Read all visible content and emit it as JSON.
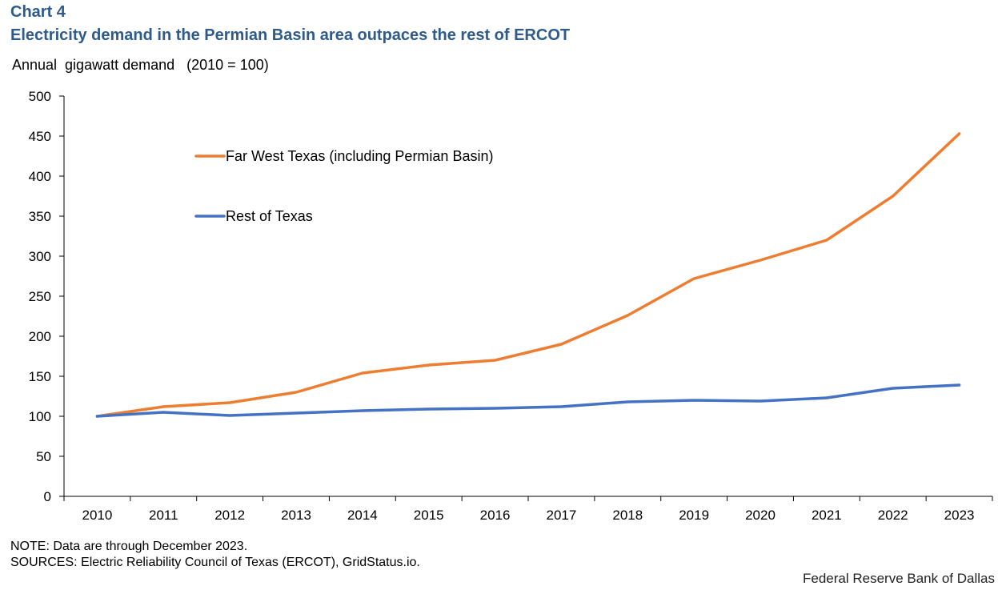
{
  "header": {
    "chart_number": "Chart 4",
    "title": "Electricity demand in the Permian Basin area outpaces the rest of ERCOT",
    "unit_label": "Annual  gigawatt demand   (2010 = 100)"
  },
  "footer": {
    "note": "NOTE: Data are through December 2023.",
    "sources": "SOURCES: Electric Reliability Council of Texas (ERCOT), GridStatus.io.",
    "credit": "Federal Reserve Bank of Dallas"
  },
  "colors": {
    "title": "#2e5b8a",
    "far_west": "#ed7d31",
    "rest": "#4472c4"
  },
  "chart_data": {
    "type": "line",
    "title": "Electricity demand in the Permian Basin area outpaces the rest of ERCOT",
    "xlabel": "",
    "ylabel": "Annual gigawatt demand (2010 = 100)",
    "x": [
      "2010",
      "2011",
      "2012",
      "2013",
      "2014",
      "2015",
      "2016",
      "2017",
      "2018",
      "2019",
      "2020",
      "2021",
      "2022",
      "2023"
    ],
    "ylim": [
      0,
      500
    ],
    "yticks": [
      0,
      50,
      100,
      150,
      200,
      250,
      300,
      350,
      400,
      450,
      500
    ],
    "grid": false,
    "legend_position": "upper-left inside plot",
    "series": [
      {
        "name": "Far West Texas (including Permian Basin)",
        "color": "#ed7d31",
        "values": [
          100,
          112,
          117,
          130,
          154,
          164,
          170,
          190,
          226,
          272,
          295,
          320,
          375,
          453
        ]
      },
      {
        "name": "Rest of Texas",
        "color": "#4472c4",
        "values": [
          100,
          105,
          101,
          104,
          107,
          109,
          110,
          112,
          118,
          120,
          119,
          123,
          135,
          139
        ]
      }
    ]
  }
}
